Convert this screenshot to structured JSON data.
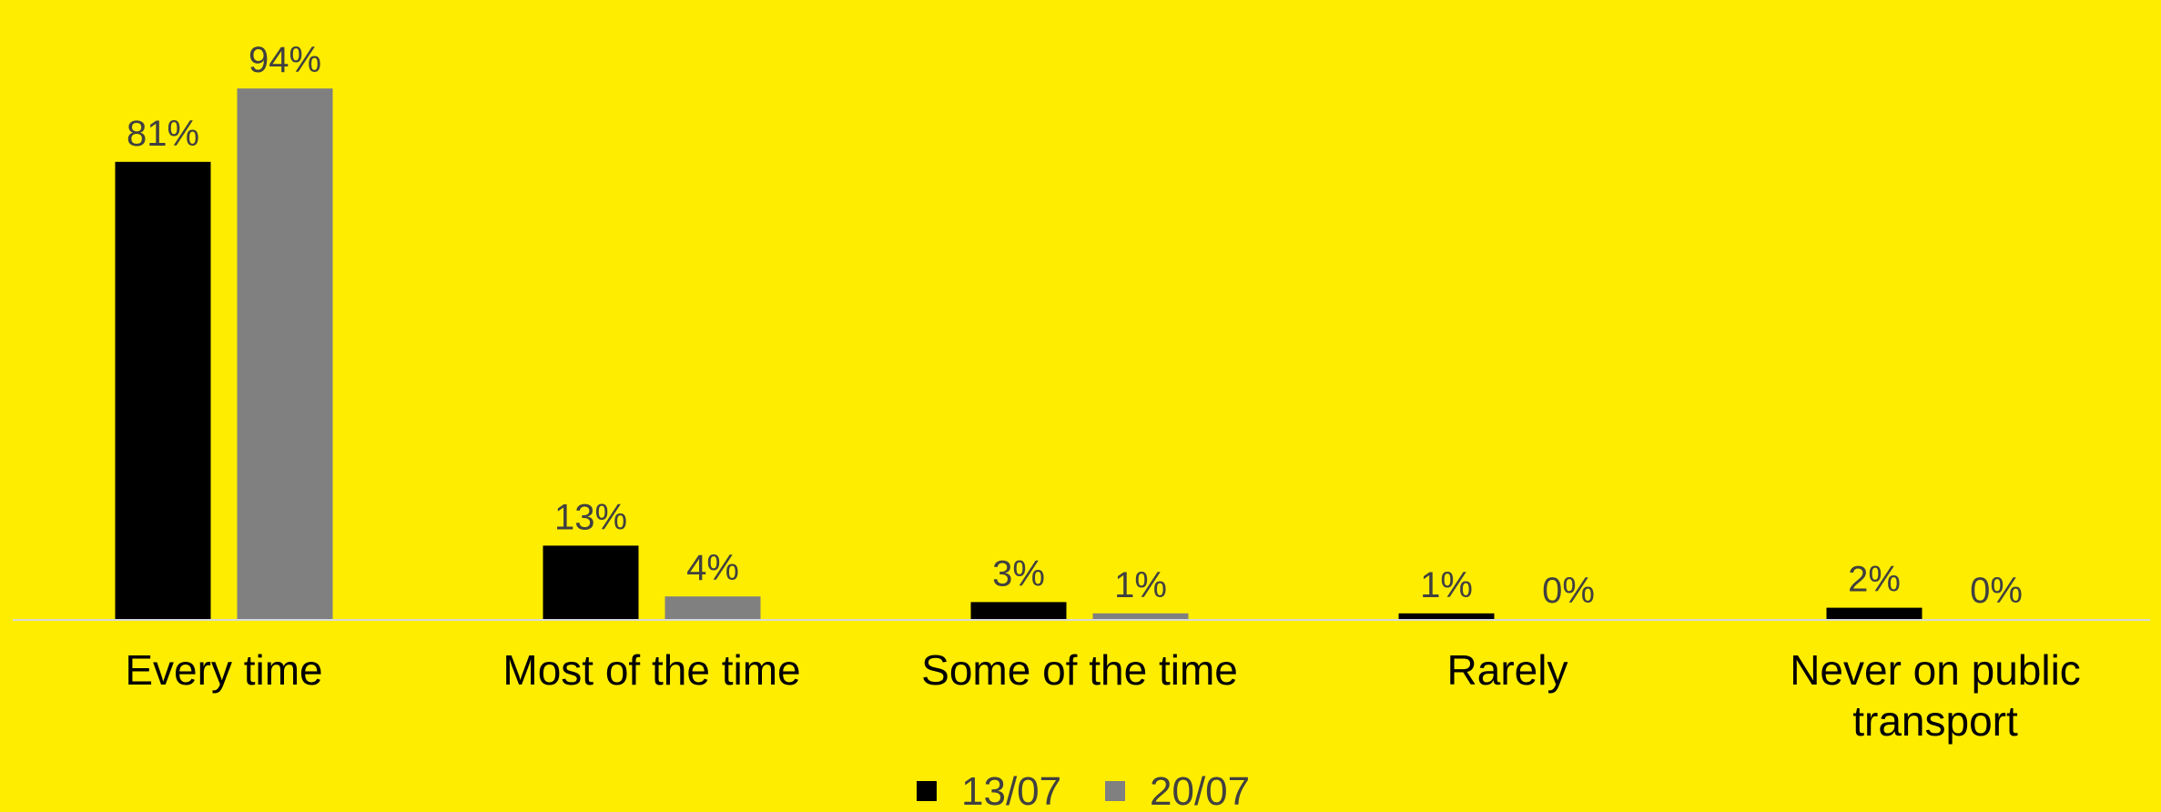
{
  "chart_data": {
    "type": "bar",
    "title": "",
    "xlabel": "",
    "ylabel": "",
    "ylim": [
      0,
      100
    ],
    "grid": false,
    "legend_position": "bottom",
    "categories": [
      [
        "Every time"
      ],
      [
        "Most of the time"
      ],
      [
        "Some of the time"
      ],
      [
        "Rarely"
      ],
      [
        "Never on public",
        "transport"
      ]
    ],
    "series": [
      {
        "name": "13/07",
        "color": "#000000",
        "values": [
          81,
          13,
          3,
          1,
          2
        ],
        "labels": [
          "81%",
          "13%",
          "3%",
          "1%",
          "2%"
        ]
      },
      {
        "name": "20/07",
        "color": "#808080",
        "values": [
          94,
          4,
          1,
          0,
          0
        ],
        "labels": [
          "94%",
          "4%",
          "1%",
          "0%",
          "0%"
        ]
      }
    ]
  },
  "colors": {
    "background": "#FFED00",
    "axis": "#D9D9D9"
  }
}
